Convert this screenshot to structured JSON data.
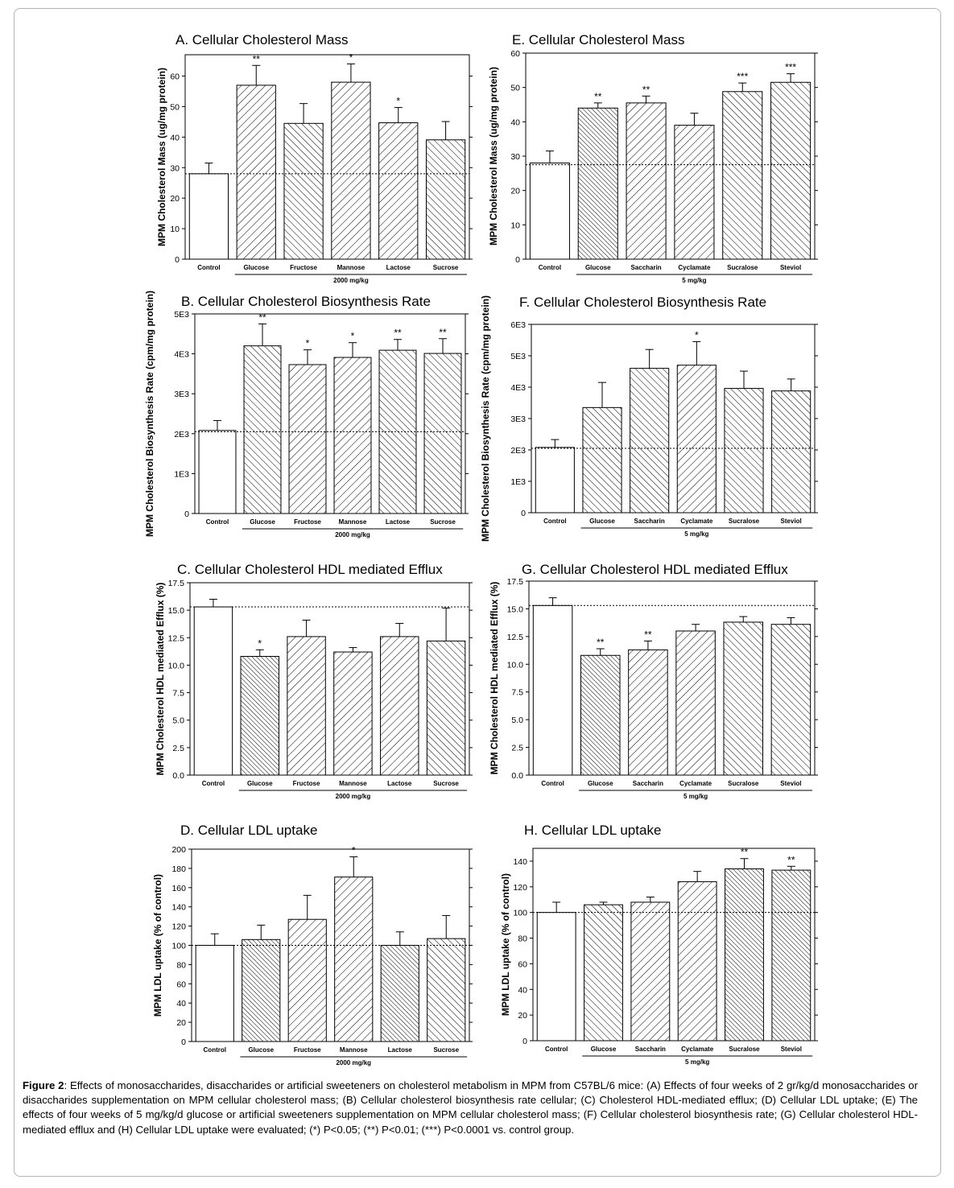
{
  "figure": {
    "caption_label": "Figure 2",
    "caption_text": ": Effects of monosaccharides, disaccharides or artificial sweeteners on cholesterol metabolism  in MPM from C57BL/6 mice: (A) Effects of four weeks of 2 gr/kg/d monosaccharides or disaccharides supplementation on MPM cellular cholesterol mass; (B) Cellular cholesterol biosynthesis rate cellular; (C) Cholesterol HDL-mediated efflux; (D) Cellular LDL uptake; (E) The effects of four weeks of 5 mg/kg/d glucose or artificial sweeteners supplementation on MPM cellular cholesterol mass; (F) Cellular cholesterol biosynthesis rate; (G)  Cellular cholesterol HDL-mediated efflux and (H) Cellular LDL uptake were evaluated; (*) P<0.05; (**) P<0.01; (***) P<0.0001 vs. control group."
  },
  "colors": {
    "bar_fill": "#ffffff",
    "bar_stroke": "#000000",
    "hatch": "#000000",
    "frame": "#b5b5b5"
  },
  "chart_data": [
    {
      "id": "A",
      "type": "bar",
      "title": "A. Cellular Cholesterol Mass",
      "ylabel": "MPM Cholesterol Mass (ug/mg protein)",
      "categories": [
        "Control",
        "Glucose",
        "Fructose",
        "Mannose",
        "Lactose",
        "Sucrose"
      ],
      "values": [
        28,
        57,
        44.5,
        58,
        44.7,
        39.1
      ],
      "errors": [
        3.5,
        6.5,
        6.5,
        6,
        5,
        6
      ],
      "significance": [
        "",
        "**",
        "",
        "*",
        "*",
        ""
      ],
      "ylim": [
        0,
        67
      ],
      "yticks": [
        0,
        10,
        20,
        30,
        40,
        50,
        60
      ],
      "ytick_labels": [
        "0",
        "10",
        "20",
        "30",
        "40",
        "50",
        "60"
      ],
      "reference_line": 28,
      "group_label": "2000 mg/kg"
    },
    {
      "id": "B",
      "type": "bar",
      "title": "B. Cellular Cholesterol Biosynthesis Rate",
      "ylabel": "MPM Cholesterol Biosynthesis Rate (cpm/mg protein)",
      "categories": [
        "Control",
        "Glucose",
        "Fructose",
        "Mannose",
        "Lactose",
        "Sucrose"
      ],
      "values": [
        2080,
        4200,
        3730,
        3910,
        4090,
        4010
      ],
      "errors": [
        250,
        550,
        370,
        370,
        270,
        370
      ],
      "significance": [
        "",
        "**",
        "*",
        "*",
        "**",
        "**"
      ],
      "ylim": [
        0,
        5000
      ],
      "yticks": [
        0,
        1000,
        2000,
        3000,
        4000,
        5000
      ],
      "ytick_labels": [
        "0",
        "1E3",
        "2E3",
        "3E3",
        "4E3",
        "5E3"
      ],
      "reference_line": 2050,
      "group_label": "2000 mg/kg"
    },
    {
      "id": "C",
      "type": "bar",
      "title": "C. Cellular Cholesterol  HDL mediated Efflux",
      "ylabel": "MPM Cholesterol HDL mediated Efflux (%)",
      "categories": [
        "Control",
        "Glucose",
        "Fructose",
        "Mannose",
        "Lactose",
        "Sucrose"
      ],
      "values": [
        15.3,
        10.8,
        12.6,
        11.2,
        12.6,
        12.2
      ],
      "errors": [
        0.7,
        0.6,
        1.5,
        0.4,
        1.2,
        3
      ],
      "significance": [
        "",
        "*",
        "",
        "",
        "",
        ""
      ],
      "ylim": [
        0,
        17.5
      ],
      "yticks": [
        0,
        2.5,
        5,
        7.5,
        10,
        12.5,
        15,
        17.5
      ],
      "ytick_labels": [
        "0.0",
        "2.5",
        "5.0",
        "7.5",
        "10.0",
        "12.5",
        "15.0",
        "17.5"
      ],
      "reference_line": 15.3,
      "group_label": "2000 mg/kg"
    },
    {
      "id": "D",
      "type": "bar",
      "title": "D. Cellular LDL uptake",
      "ylabel": "MPM LDL uptake (% of control)",
      "categories": [
        "Control",
        "Glucose",
        "Fructose",
        "Mannose",
        "Lactose",
        "Sucrose"
      ],
      "values": [
        100,
        106,
        127,
        171,
        100,
        107
      ],
      "errors": [
        12,
        15,
        25,
        21,
        14,
        24
      ],
      "significance": [
        "",
        "",
        "",
        "*",
        "",
        ""
      ],
      "ylim": [
        0,
        200
      ],
      "yticks": [
        0,
        20,
        40,
        60,
        80,
        100,
        120,
        140,
        160,
        180,
        200
      ],
      "ytick_labels": [
        "0",
        "20",
        "40",
        "60",
        "80",
        "100",
        "120",
        "140",
        "160",
        "180",
        "200"
      ],
      "reference_line": 100,
      "group_label": "2000 mg/kg"
    },
    {
      "id": "E",
      "type": "bar",
      "title": "E. Cellular Cholesterol Mass",
      "ylabel": "MPM Cholesterol Mass (ug/mg protein)",
      "categories": [
        "Control",
        "Glucose",
        "Saccharin",
        "Cyclamate",
        "Sucralose",
        "Steviol"
      ],
      "values": [
        28,
        44,
        45.5,
        39,
        48.8,
        51.5
      ],
      "errors": [
        3.5,
        1.5,
        2,
        3.5,
        2.5,
        2.5
      ],
      "significance": [
        "",
        "**",
        "**",
        "",
        "***",
        "***"
      ],
      "ylim": [
        0,
        60
      ],
      "yticks": [
        0,
        10,
        20,
        30,
        40,
        50,
        60
      ],
      "ytick_labels": [
        "0",
        "10",
        "20",
        "30",
        "40",
        "50",
        "60"
      ],
      "reference_line": 27.5,
      "group_label": "5 mg/kg"
    },
    {
      "id": "F",
      "type": "bar",
      "title": "F. Cellular Cholesterol Biosynthesis Rate",
      "ylabel": "MPM Cholesterol Biosynthesis Rate (cpm/mg protein)",
      "categories": [
        "Control",
        "Glucose",
        "Saccharin",
        "Cyclamate",
        "Sucralose",
        "Steviol"
      ],
      "values": [
        2080,
        3350,
        4600,
        4700,
        3960,
        3880
      ],
      "errors": [
        250,
        800,
        600,
        750,
        550,
        380
      ],
      "significance": [
        "",
        "",
        "",
        "*",
        "",
        ""
      ],
      "ylim": [
        0,
        6000
      ],
      "yticks": [
        0,
        1000,
        2000,
        3000,
        4000,
        5000,
        6000
      ],
      "ytick_labels": [
        "0",
        "1E3",
        "2E3",
        "3E3",
        "4E3",
        "5E3",
        "6E3"
      ],
      "reference_line": 2050,
      "group_label": "5 mg/kg"
    },
    {
      "id": "G",
      "type": "bar",
      "title": "G. Cellular Cholesterol  HDL mediated Efflux",
      "ylabel": "MPM Cholesterol HDL mediated Efflux (%)",
      "categories": [
        "Control",
        "Glucose",
        "Saccharin",
        "Cyclamate",
        "Sucralose",
        "Steviol"
      ],
      "values": [
        15.3,
        10.8,
        11.3,
        13,
        13.8,
        13.6
      ],
      "errors": [
        0.7,
        0.6,
        0.8,
        0.6,
        0.5,
        0.6
      ],
      "significance": [
        "",
        "**",
        "**",
        "",
        "",
        ""
      ],
      "ylim": [
        0,
        17.5
      ],
      "yticks": [
        0,
        2.5,
        5,
        7.5,
        10,
        12.5,
        15,
        17.5
      ],
      "ytick_labels": [
        "0.0",
        "2.5",
        "5.0",
        "7.5",
        "10.0",
        "12.5",
        "15.0",
        "17.5"
      ],
      "reference_line": 15.3,
      "group_label": "5 mg/kg"
    },
    {
      "id": "H",
      "type": "bar",
      "title": "H. Cellular LDL uptake",
      "ylabel": "MPM LDL uptake  (% of control)",
      "categories": [
        "Control",
        "Glucose",
        "Saccharin",
        "Cyclamate",
        "Sucralose",
        "Steviol"
      ],
      "values": [
        100,
        106,
        108,
        124,
        134,
        133
      ],
      "errors": [
        8,
        2,
        4,
        8,
        8,
        3
      ],
      "significance": [
        "",
        "",
        "",
        "",
        "**",
        "**"
      ],
      "ylim": [
        0,
        150
      ],
      "yticks": [
        0,
        20,
        40,
        60,
        80,
        100,
        120,
        140
      ],
      "ytick_labels": [
        "0",
        "20",
        "40",
        "60",
        "80",
        "100",
        "120",
        "140"
      ],
      "reference_line": 100,
      "group_label": "5 mg/kg"
    }
  ]
}
